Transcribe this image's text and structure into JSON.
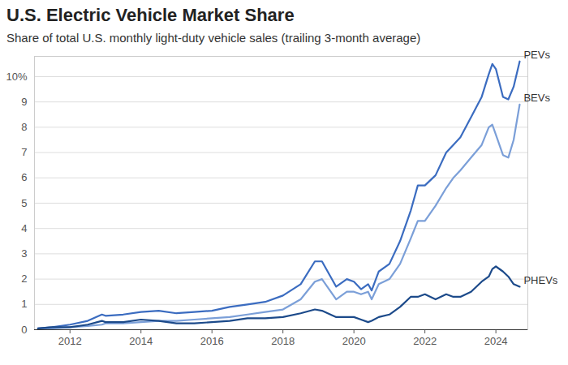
{
  "chart_data": {
    "type": "line",
    "title": "U.S. Electric Vehicle Market Share",
    "subtitle": "Share of total U.S. monthly light-duty vehicle sales (trailing 3-month average)",
    "x": [
      2011.1,
      2011.5,
      2012.0,
      2012.5,
      2012.9,
      2013.0,
      2013.5,
      2014.0,
      2014.5,
      2015.0,
      2015.5,
      2016.0,
      2016.5,
      2017.0,
      2017.5,
      2018.0,
      2018.5,
      2018.9,
      2019.1,
      2019.5,
      2019.8,
      2020.0,
      2020.2,
      2020.4,
      2020.5,
      2020.7,
      2021.0,
      2021.3,
      2021.6,
      2021.8,
      2022.0,
      2022.3,
      2022.6,
      2022.8,
      2023.0,
      2023.3,
      2023.6,
      2023.8,
      2023.9,
      2024.0,
      2024.2,
      2024.35,
      2024.5,
      2024.67
    ],
    "series": [
      {
        "name": "PEVs",
        "color": "#3b6cc0",
        "values": [
          0.05,
          0.1,
          0.2,
          0.35,
          0.6,
          0.55,
          0.6,
          0.7,
          0.75,
          0.65,
          0.7,
          0.75,
          0.9,
          1.0,
          1.1,
          1.35,
          1.8,
          2.7,
          2.7,
          1.7,
          2.0,
          1.9,
          1.6,
          1.8,
          1.55,
          2.3,
          2.6,
          3.5,
          4.7,
          5.7,
          5.7,
          6.1,
          7.0,
          7.3,
          7.6,
          8.4,
          9.2,
          10.1,
          10.5,
          10.3,
          9.2,
          9.1,
          9.6,
          10.6
        ]
      },
      {
        "name": "BEVs",
        "color": "#7b9fd8",
        "values": [
          0.0,
          0.05,
          0.1,
          0.15,
          0.2,
          0.25,
          0.25,
          0.3,
          0.35,
          0.35,
          0.4,
          0.45,
          0.5,
          0.6,
          0.7,
          0.8,
          1.2,
          1.9,
          2.0,
          1.2,
          1.5,
          1.5,
          1.4,
          1.5,
          1.2,
          1.8,
          2.0,
          2.6,
          3.6,
          4.3,
          4.3,
          4.9,
          5.6,
          6.0,
          6.3,
          6.8,
          7.3,
          8.0,
          8.1,
          7.7,
          6.9,
          6.8,
          7.5,
          8.9
        ]
      },
      {
        "name": "PHEVs",
        "color": "#1c4a8a",
        "values": [
          0.05,
          0.1,
          0.1,
          0.2,
          0.35,
          0.3,
          0.3,
          0.4,
          0.35,
          0.25,
          0.25,
          0.3,
          0.35,
          0.45,
          0.45,
          0.5,
          0.65,
          0.8,
          0.75,
          0.5,
          0.5,
          0.5,
          0.4,
          0.3,
          0.35,
          0.5,
          0.6,
          0.9,
          1.3,
          1.3,
          1.4,
          1.2,
          1.4,
          1.3,
          1.3,
          1.5,
          1.9,
          2.1,
          2.4,
          2.5,
          2.3,
          2.1,
          1.8,
          1.7
        ]
      }
    ],
    "xlim": [
      2011,
      2024.9
    ],
    "xticks": [
      2012,
      2014,
      2016,
      2018,
      2020,
      2022,
      2024
    ],
    "ylim": [
      0,
      10.8
    ],
    "yticks": [
      0,
      1,
      2,
      3,
      4,
      5,
      6,
      7,
      8,
      9,
      {
        "value": 10,
        "label": "10%"
      }
    ],
    "grid": true
  }
}
